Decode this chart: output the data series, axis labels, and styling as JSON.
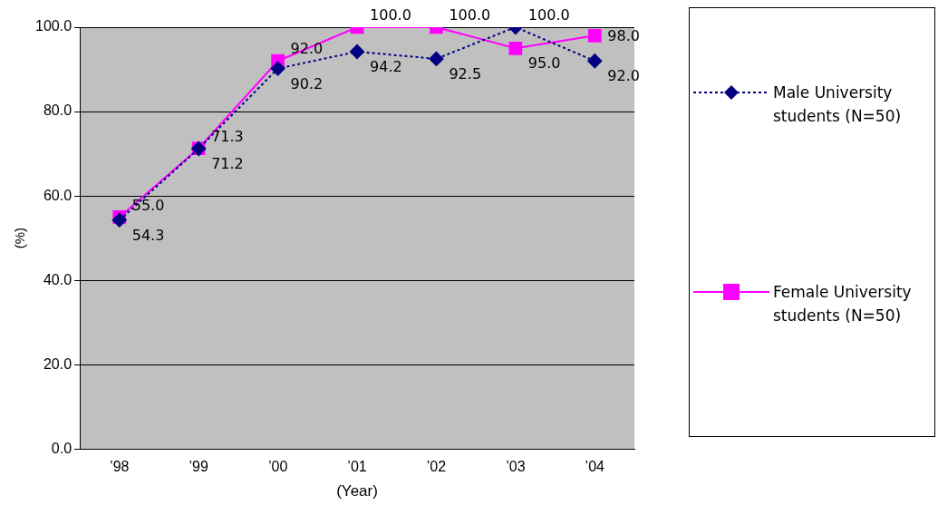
{
  "chart_data": {
    "type": "line",
    "xlabel": "(Year)",
    "ylabel": "(%)",
    "categories": [
      "’98",
      "’99",
      "’00",
      "’01",
      "’02",
      "’03",
      "’04"
    ],
    "series": [
      {
        "name": "Male University students (N=50)",
        "color": "#000080",
        "marker": "diamond",
        "line_style": "dotted",
        "values": [
          54.3,
          71.2,
          90.2,
          94.2,
          92.5,
          100.0,
          92.0
        ],
        "value_labels": [
          "54.3",
          "71.2",
          "90.2",
          "94.2",
          "92.5",
          "100.0",
          "92.0"
        ]
      },
      {
        "name": "Female University students (N=50)",
        "color": "#ff00ff",
        "marker": "square",
        "line_style": "solid",
        "values": [
          55.0,
          71.3,
          92.0,
          100.0,
          100.0,
          95.0,
          98.0
        ],
        "value_labels": [
          "55.0",
          "71.3",
          "92.0",
          "100.0",
          "100.0",
          "95.0",
          "98.0"
        ]
      }
    ],
    "ylim": [
      0,
      100
    ],
    "yticks": [
      {
        "value": 0,
        "label": "0.0"
      },
      {
        "value": 20,
        "label": "20.0"
      },
      {
        "value": 40,
        "label": "40.0"
      },
      {
        "value": 60,
        "label": "60.0"
      },
      {
        "value": 80,
        "label": "80.0"
      },
      {
        "value": 100,
        "label": "100.0"
      }
    ],
    "grid": "y",
    "legend": "right"
  }
}
